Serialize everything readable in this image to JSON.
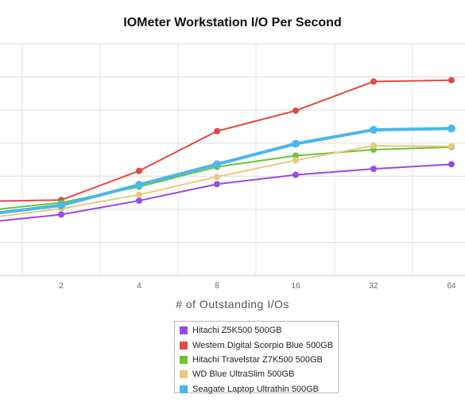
{
  "chart_data": {
    "type": "line",
    "title": "IOMeter Workstation I/O Per Second",
    "xlabel": "# of Outstanding I/Os",
    "ylabel": "",
    "x": [
      1,
      2,
      4,
      8,
      16,
      32,
      64
    ],
    "x_tick_labels": [
      "",
      "2",
      "4",
      "8",
      "16",
      "32",
      "64"
    ],
    "grid": true,
    "legend_position": "bottom-center",
    "series": [
      {
        "name": "Hitachi Z5K500 500GB",
        "color": "#9b4ae3",
        "values": [
          80,
          92,
          113,
          138,
          152,
          161,
          168
        ]
      },
      {
        "name": "Western Digital Scorpio Blue 500GB",
        "color": "#e24a3f",
        "values": [
          112,
          114,
          158,
          218,
          249,
          293,
          295
        ]
      },
      {
        "name": "Hitachi Travelstar Z7K500 500GB",
        "color": "#6cc436",
        "values": [
          98,
          110,
          134,
          164,
          181,
          190,
          194
        ]
      },
      {
        "name": "WD Blue UltraSlim 500GB",
        "color": "#ecc77e",
        "values": [
          86,
          101,
          122,
          149,
          174,
          196,
          195
        ]
      },
      {
        "name": "Seagate Laptop Ultrathin 500GB",
        "color": "#4ab7ea",
        "values": [
          92,
          106,
          137,
          168,
          199,
          220,
          222
        ]
      }
    ]
  }
}
